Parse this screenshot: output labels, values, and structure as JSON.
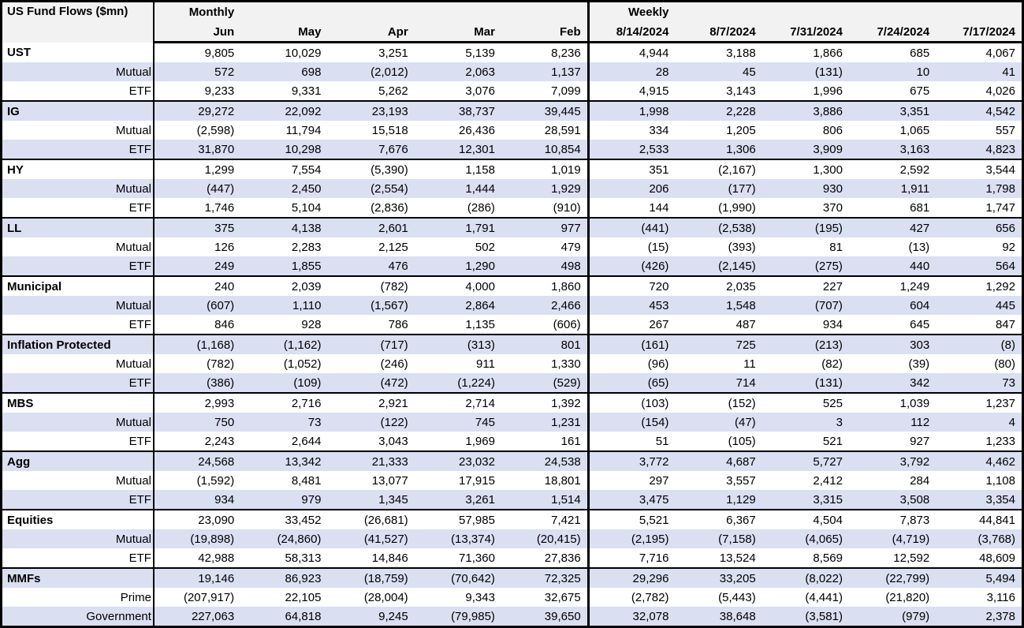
{
  "chart_data": {
    "type": "table",
    "title": "US Fund Flows ($mn)",
    "group_headers": [
      "Monthly",
      "Weekly"
    ],
    "columns": [
      "Jun",
      "May",
      "Apr",
      "Mar",
      "Feb",
      "8/14/2024",
      "8/7/2024",
      "7/31/2024",
      "7/24/2024",
      "7/17/2024"
    ],
    "rows": [
      {
        "label": "UST",
        "type": "group",
        "values": [
          "9,805",
          "10,029",
          "3,251",
          "5,139",
          "8,236",
          "4,944",
          "3,188",
          "1,866",
          "685",
          "4,067"
        ]
      },
      {
        "label": "Mutual",
        "type": "sub",
        "values": [
          "572",
          "698",
          "(2,012)",
          "2,063",
          "1,137",
          "28",
          "45",
          "(131)",
          "10",
          "41"
        ]
      },
      {
        "label": "ETF",
        "type": "sub",
        "values": [
          "9,233",
          "9,331",
          "5,262",
          "3,076",
          "7,099",
          "4,915",
          "3,143",
          "1,996",
          "675",
          "4,026"
        ]
      },
      {
        "label": "IG",
        "type": "group",
        "values": [
          "29,272",
          "22,092",
          "23,193",
          "38,737",
          "39,445",
          "1,998",
          "2,228",
          "3,886",
          "3,351",
          "4,542"
        ]
      },
      {
        "label": "Mutual",
        "type": "sub",
        "values": [
          "(2,598)",
          "11,794",
          "15,518",
          "26,436",
          "28,591",
          "334",
          "1,205",
          "806",
          "1,065",
          "557"
        ]
      },
      {
        "label": "ETF",
        "type": "sub",
        "values": [
          "31,870",
          "10,298",
          "7,676",
          "12,301",
          "10,854",
          "2,533",
          "1,306",
          "3,909",
          "3,163",
          "4,823"
        ]
      },
      {
        "label": "HY",
        "type": "group",
        "values": [
          "1,299",
          "7,554",
          "(5,390)",
          "1,158",
          "1,019",
          "351",
          "(2,167)",
          "1,300",
          "2,592",
          "3,544"
        ]
      },
      {
        "label": "Mutual",
        "type": "sub",
        "values": [
          "(447)",
          "2,450",
          "(2,554)",
          "1,444",
          "1,929",
          "206",
          "(177)",
          "930",
          "1,911",
          "1,798"
        ]
      },
      {
        "label": "ETF",
        "type": "sub",
        "values": [
          "1,746",
          "5,104",
          "(2,836)",
          "(286)",
          "(910)",
          "144",
          "(1,990)",
          "370",
          "681",
          "1,747"
        ]
      },
      {
        "label": "LL",
        "type": "group",
        "values": [
          "375",
          "4,138",
          "2,601",
          "1,791",
          "977",
          "(441)",
          "(2,538)",
          "(195)",
          "427",
          "656"
        ]
      },
      {
        "label": "Mutual",
        "type": "sub",
        "values": [
          "126",
          "2,283",
          "2,125",
          "502",
          "479",
          "(15)",
          "(393)",
          "81",
          "(13)",
          "92"
        ]
      },
      {
        "label": "ETF",
        "type": "sub",
        "values": [
          "249",
          "1,855",
          "476",
          "1,290",
          "498",
          "(426)",
          "(2,145)",
          "(275)",
          "440",
          "564"
        ]
      },
      {
        "label": "Municipal",
        "type": "group",
        "values": [
          "240",
          "2,039",
          "(782)",
          "4,000",
          "1,860",
          "720",
          "2,035",
          "227",
          "1,249",
          "1,292"
        ]
      },
      {
        "label": "Mutual",
        "type": "sub",
        "values": [
          "(607)",
          "1,110",
          "(1,567)",
          "2,864",
          "2,466",
          "453",
          "1,548",
          "(707)",
          "604",
          "445"
        ]
      },
      {
        "label": "ETF",
        "type": "sub",
        "values": [
          "846",
          "928",
          "786",
          "1,135",
          "(606)",
          "267",
          "487",
          "934",
          "645",
          "847"
        ]
      },
      {
        "label": "Inflation Protected",
        "type": "group",
        "values": [
          "(1,168)",
          "(1,162)",
          "(717)",
          "(313)",
          "801",
          "(161)",
          "725",
          "(213)",
          "303",
          "(8)"
        ]
      },
      {
        "label": "Mutual",
        "type": "sub",
        "values": [
          "(782)",
          "(1,052)",
          "(246)",
          "911",
          "1,330",
          "(96)",
          "11",
          "(82)",
          "(39)",
          "(80)"
        ]
      },
      {
        "label": "ETF",
        "type": "sub",
        "values": [
          "(386)",
          "(109)",
          "(472)",
          "(1,224)",
          "(529)",
          "(65)",
          "714",
          "(131)",
          "342",
          "73"
        ]
      },
      {
        "label": "MBS",
        "type": "group",
        "values": [
          "2,993",
          "2,716",
          "2,921",
          "2,714",
          "1,392",
          "(103)",
          "(152)",
          "525",
          "1,039",
          "1,237"
        ]
      },
      {
        "label": "Mutual",
        "type": "sub",
        "values": [
          "750",
          "73",
          "(122)",
          "745",
          "1,231",
          "(154)",
          "(47)",
          "3",
          "112",
          "4"
        ]
      },
      {
        "label": "ETF",
        "type": "sub",
        "values": [
          "2,243",
          "2,644",
          "3,043",
          "1,969",
          "161",
          "51",
          "(105)",
          "521",
          "927",
          "1,233"
        ]
      },
      {
        "label": "Agg",
        "type": "group",
        "values": [
          "24,568",
          "13,342",
          "21,333",
          "23,032",
          "24,538",
          "3,772",
          "4,687",
          "5,727",
          "3,792",
          "4,462"
        ]
      },
      {
        "label": "Mutual",
        "type": "sub",
        "values": [
          "(1,592)",
          "8,481",
          "13,077",
          "17,915",
          "18,801",
          "297",
          "3,557",
          "2,412",
          "284",
          "1,108"
        ]
      },
      {
        "label": "ETF",
        "type": "sub",
        "values": [
          "934",
          "979",
          "1,345",
          "3,261",
          "1,514",
          "3,475",
          "1,129",
          "3,315",
          "3,508",
          "3,354"
        ]
      },
      {
        "label": "Equities",
        "type": "group",
        "values": [
          "23,090",
          "33,452",
          "(26,681)",
          "57,985",
          "7,421",
          "5,521",
          "6,367",
          "4,504",
          "7,873",
          "44,841"
        ]
      },
      {
        "label": "Mutual",
        "type": "sub",
        "values": [
          "(19,898)",
          "(24,860)",
          "(41,527)",
          "(13,374)",
          "(20,415)",
          "(2,195)",
          "(7,158)",
          "(4,065)",
          "(4,719)",
          "(3,768)"
        ]
      },
      {
        "label": "ETF",
        "type": "sub",
        "values": [
          "42,988",
          "58,313",
          "14,846",
          "71,360",
          "27,836",
          "7,716",
          "13,524",
          "8,569",
          "12,592",
          "48,609"
        ]
      },
      {
        "label": "MMFs",
        "type": "group",
        "values": [
          "19,146",
          "86,923",
          "(18,759)",
          "(70,642)",
          "72,325",
          "29,296",
          "33,205",
          "(8,022)",
          "(22,799)",
          "5,494"
        ]
      },
      {
        "label": "Prime",
        "type": "sub",
        "values": [
          "(207,917)",
          "22,105",
          "(28,004)",
          "9,343",
          "32,675",
          "(2,782)",
          "(5,443)",
          "(4,441)",
          "(21,820)",
          "3,116"
        ]
      },
      {
        "label": "Government",
        "type": "sub",
        "values": [
          "227,063",
          "64,818",
          "9,245",
          "(79,985)",
          "39,650",
          "32,078",
          "38,648",
          "(3,581)",
          "(979)",
          "2,378"
        ]
      }
    ]
  },
  "colors": {
    "stripe": "#dadff2",
    "header_bg": "#f2f2f2",
    "border": "#000000",
    "text": "#000000"
  }
}
